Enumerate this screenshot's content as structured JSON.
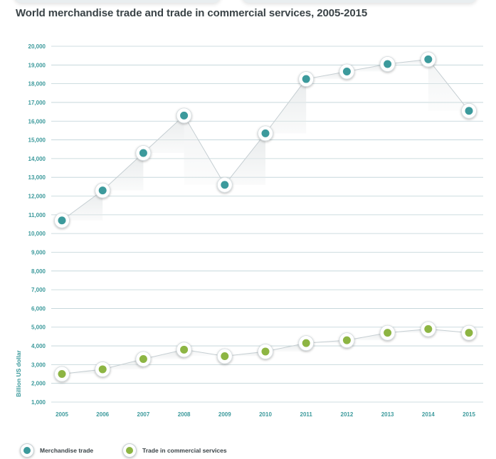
{
  "title": "World merchandise trade and trade in commercial services, 2005-2015",
  "chart_data": {
    "type": "line",
    "title": "World merchandise trade and trade in commercial services, 2005-2015",
    "ylabel": "Billion US dollar",
    "xlabel": "",
    "x": [
      "2005",
      "2006",
      "2007",
      "2008",
      "2009",
      "2010",
      "2011",
      "2012",
      "2013",
      "2014",
      "2015"
    ],
    "yticks": [
      "1,000",
      "2,000",
      "3,000",
      "4,000",
      "5,000",
      "6,000",
      "7,000",
      "8,000",
      "9,000",
      "10,000",
      "11,000",
      "12,000",
      "13,000",
      "14,000",
      "15,000",
      "16,000",
      "17,000",
      "18,000",
      "19,000",
      "20,000"
    ],
    "ylim": [
      1000,
      20000
    ],
    "grid": true,
    "legend_position": "bottom-left",
    "series": [
      {
        "name": "Merchandise trade",
        "color": "#3c9a9c",
        "values": [
          10700,
          12300,
          14300,
          16300,
          12600,
          15350,
          18250,
          18650,
          19050,
          19300,
          16550
        ]
      },
      {
        "name": "Trade in commercial services",
        "color": "#8db543",
        "values": [
          2500,
          2750,
          3300,
          3800,
          3450,
          3700,
          4150,
          4300,
          4700,
          4900,
          4700
        ]
      }
    ]
  },
  "colors": {
    "grid": "#a9c3c9",
    "axis_text": "#3c9a9c",
    "connector": "#c5ced2",
    "shade": "#e6e9ea"
  }
}
